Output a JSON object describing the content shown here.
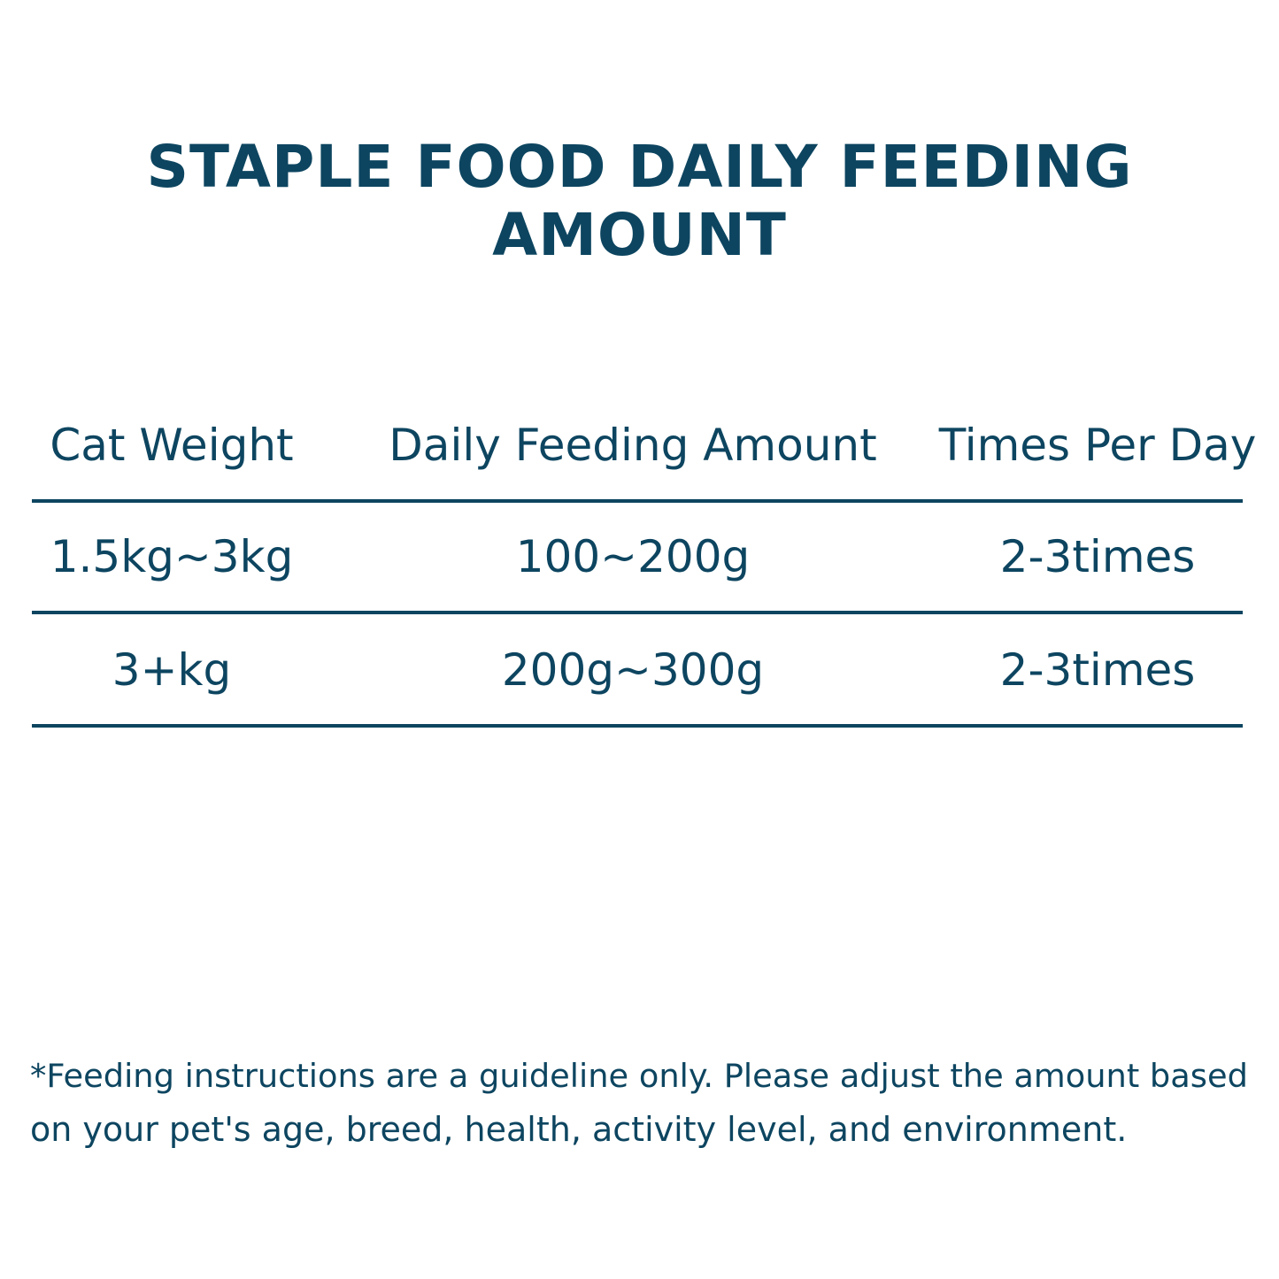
{
  "header": {
    "title": "STAPLE FOOD DAILY FEEDING AMOUNT"
  },
  "table": {
    "columns": [
      "Cat Weight",
      "Daily Feeding Amount",
      "Times Per Day"
    ],
    "rows": [
      [
        "1.5kg~3kg",
        "100~200g",
        "2-3times"
      ],
      [
        "3+kg",
        "200g~300g",
        "2-3times"
      ]
    ]
  },
  "footnote": {
    "lines": [
      "*Feeding instructions are a guideline only. Please adjust the amount based",
      "on your pet's age, breed, health, activity level, and environment."
    ]
  }
}
